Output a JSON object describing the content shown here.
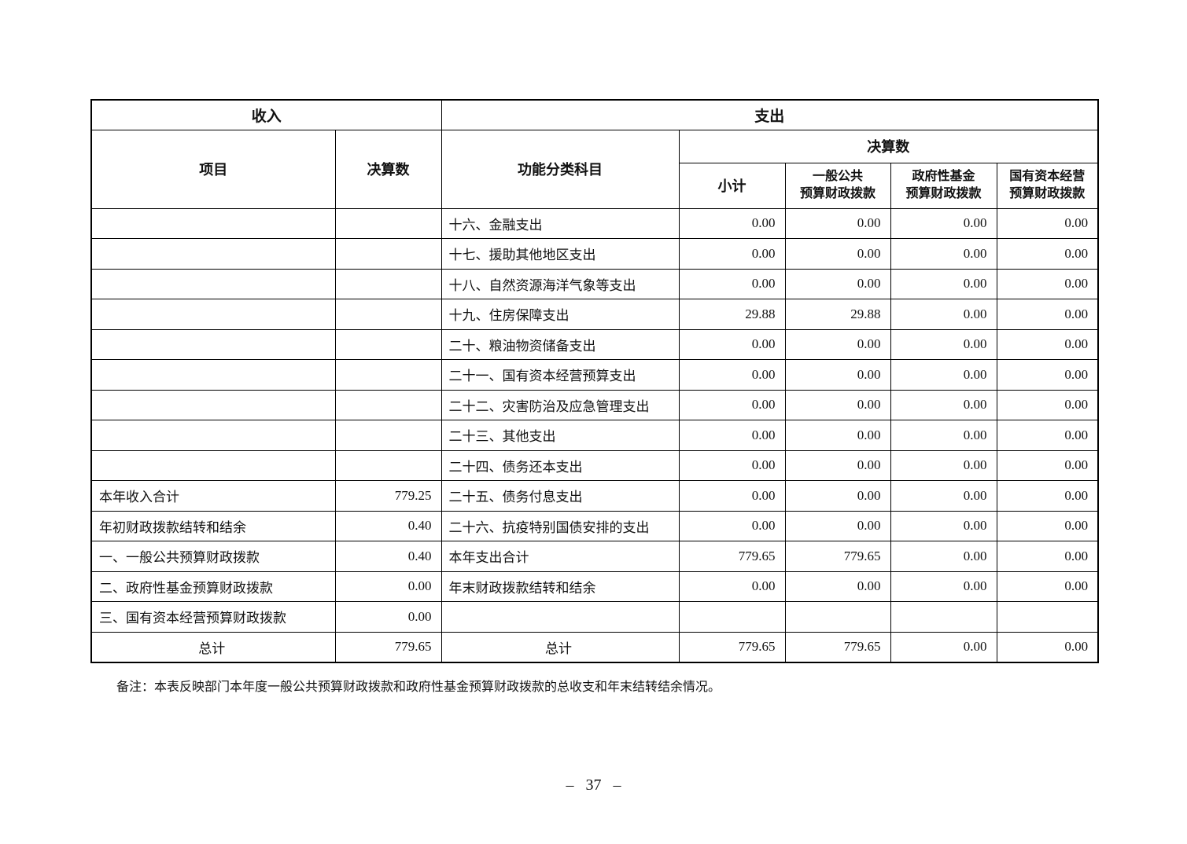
{
  "page": {
    "note": "备注：本表反映部门本年度一般公共预算财政拨款和政府性基金预算财政拨款的总收支和年末结转结余情况。",
    "page_number": "– 37 –"
  },
  "table": {
    "header": {
      "income": "收入",
      "expense": "支出",
      "item": "项目",
      "final_amount": "决算数",
      "functional_category": "功能分类科目",
      "final_amount_expense": "决算数",
      "subtotal": "小计",
      "general_public": "一般公共\n预算财政拨款",
      "gov_fund": "政府性基金\n预算财政拨款",
      "state_capital": "国有资本经营\n预算财政拨款"
    },
    "rows": [
      {
        "income_item": "",
        "income_value": "",
        "expense_item": "十六、金融支出",
        "subtotal": "0.00",
        "general_public": "0.00",
        "gov_fund": "0.00",
        "state_capital": "0.00",
        "center": false
      },
      {
        "income_item": "",
        "income_value": "",
        "expense_item": "十七、援助其他地区支出",
        "subtotal": "0.00",
        "general_public": "0.00",
        "gov_fund": "0.00",
        "state_capital": "0.00",
        "center": false
      },
      {
        "income_item": "",
        "income_value": "",
        "expense_item": "十八、自然资源海洋气象等支出",
        "subtotal": "0.00",
        "general_public": "0.00",
        "gov_fund": "0.00",
        "state_capital": "0.00",
        "center": false
      },
      {
        "income_item": "",
        "income_value": "",
        "expense_item": "十九、住房保障支出",
        "subtotal": "29.88",
        "general_public": "29.88",
        "gov_fund": "0.00",
        "state_capital": "0.00",
        "center": false
      },
      {
        "income_item": "",
        "income_value": "",
        "expense_item": "二十、粮油物资储备支出",
        "subtotal": "0.00",
        "general_public": "0.00",
        "gov_fund": "0.00",
        "state_capital": "0.00",
        "center": false
      },
      {
        "income_item": "",
        "income_value": "",
        "expense_item": "二十一、国有资本经营预算支出",
        "subtotal": "0.00",
        "general_public": "0.00",
        "gov_fund": "0.00",
        "state_capital": "0.00",
        "center": false
      },
      {
        "income_item": "",
        "income_value": "",
        "expense_item": "二十二、灾害防治及应急管理支出",
        "subtotal": "0.00",
        "general_public": "0.00",
        "gov_fund": "0.00",
        "state_capital": "0.00",
        "center": false
      },
      {
        "income_item": "",
        "income_value": "",
        "expense_item": "二十三、其他支出",
        "subtotal": "0.00",
        "general_public": "0.00",
        "gov_fund": "0.00",
        "state_capital": "0.00",
        "center": false
      },
      {
        "income_item": "",
        "income_value": "",
        "expense_item": "二十四、债务还本支出",
        "subtotal": "0.00",
        "general_public": "0.00",
        "gov_fund": "0.00",
        "state_capital": "0.00",
        "center": false
      },
      {
        "income_item": "本年收入合计",
        "income_value": "779.25",
        "expense_item": "二十五、债务付息支出",
        "subtotal": "0.00",
        "general_public": "0.00",
        "gov_fund": "0.00",
        "state_capital": "0.00",
        "center": false
      },
      {
        "income_item": "年初财政拨款结转和结余",
        "income_value": "0.40",
        "expense_item": "二十六、抗疫特别国债安排的支出",
        "subtotal": "0.00",
        "general_public": "0.00",
        "gov_fund": "0.00",
        "state_capital": "0.00",
        "center": false
      },
      {
        "income_item": "一、一般公共预算财政拨款",
        "income_value": "0.40",
        "expense_item": "本年支出合计",
        "subtotal": "779.65",
        "general_public": "779.65",
        "gov_fund": "0.00",
        "state_capital": "0.00",
        "center": false
      },
      {
        "income_item": "二、政府性基金预算财政拨款",
        "income_value": "0.00",
        "expense_item": "年末财政拨款结转和结余",
        "subtotal": "0.00",
        "general_public": "0.00",
        "gov_fund": "0.00",
        "state_capital": "0.00",
        "center": false
      },
      {
        "income_item": "三、国有资本经营预算财政拨款",
        "income_value": "0.00",
        "expense_item": "",
        "subtotal": "",
        "general_public": "",
        "gov_fund": "",
        "state_capital": "",
        "center": false
      },
      {
        "income_item": "总计",
        "income_value": "779.65",
        "expense_item": "总计",
        "subtotal": "779.65",
        "general_public": "779.65",
        "gov_fund": "0.00",
        "state_capital": "0.00",
        "center": true
      }
    ]
  }
}
